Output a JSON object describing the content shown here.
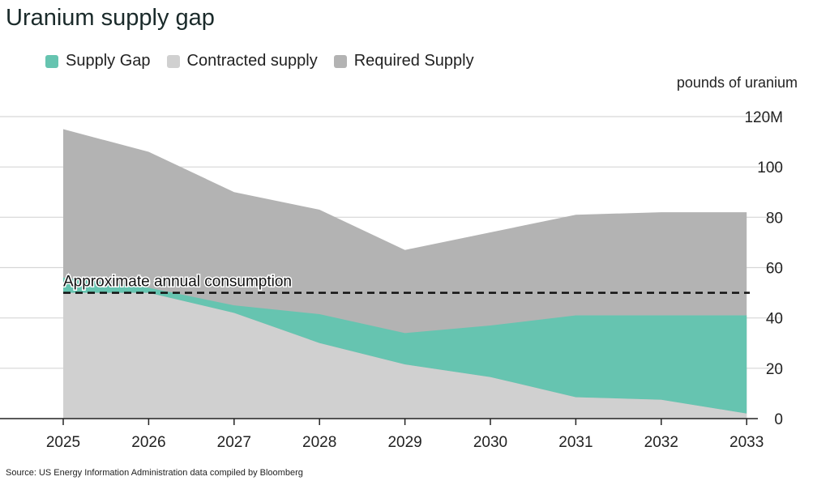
{
  "title": "Uranium supply gap",
  "source": "Source: US Energy Information Administration data compiled by Bloomberg",
  "chart_data": {
    "type": "area",
    "title": "Uranium supply gap",
    "ylabel": "pounds of uranium",
    "ylim": [
      0,
      120
    ],
    "yticks": [
      "0",
      "20",
      "40",
      "60",
      "80",
      "100",
      "120M"
    ],
    "ytick_values": [
      0,
      20,
      40,
      60,
      80,
      100,
      120
    ],
    "categories": [
      "2025",
      "2026",
      "2027",
      "2028",
      "2029",
      "2030",
      "2031",
      "2032",
      "2033"
    ],
    "grid": true,
    "legend_placement": "top-left",
    "series": [
      {
        "name": "Supply Gap",
        "color": "#66c4b0",
        "values": [
          6,
          2,
          3,
          11.5,
          12.5,
          20.5,
          32.5,
          33.5,
          39
        ]
      },
      {
        "name": "Contracted supply",
        "color": "#d0d0d0",
        "values": [
          50,
          50,
          42,
          30,
          21.5,
          16.5,
          8.5,
          7.5,
          2
        ]
      },
      {
        "name": "Required Supply",
        "color": "#b3b3b3",
        "values": [
          115,
          106,
          90,
          83,
          67,
          74,
          81,
          82,
          82
        ]
      }
    ],
    "annotations": [
      {
        "text": "Approximate annual consumption",
        "value": 50,
        "style": "dashed"
      }
    ]
  }
}
